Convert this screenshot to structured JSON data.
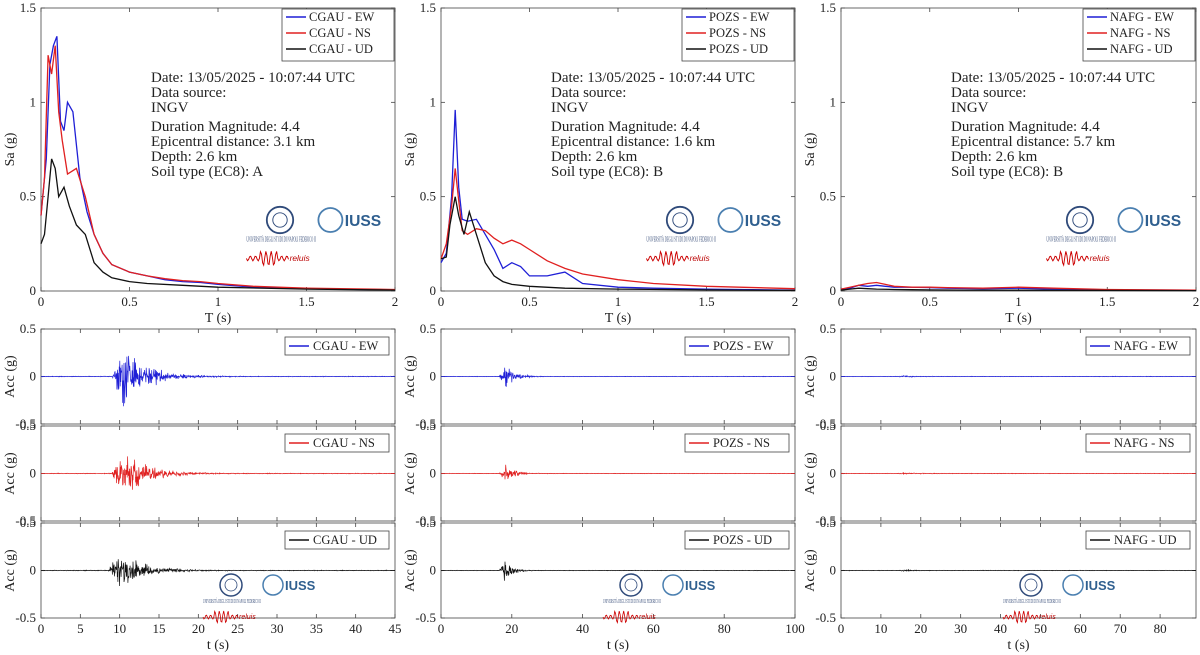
{
  "colors": {
    "ew": "#1f1fd6",
    "ns": "#e02020",
    "ud": "#111111"
  },
  "logos": {
    "university": "UNIVERSITÀ DEGLI STUDI DI NAPOLI FEDERICO II",
    "iuss": "IUSS",
    "reluis": "reluis"
  },
  "stations": [
    {
      "code": "CGAU",
      "spectra": {
        "type": "line",
        "xlabel": "T (s)",
        "ylabel": "Sa (g)",
        "xlim": [
          0,
          2
        ],
        "ylim": [
          0,
          1.5
        ],
        "xticks": [
          0,
          0.5,
          1,
          1.5,
          2
        ],
        "yticks": [
          0,
          0.5,
          1,
          1.5
        ],
        "series": [
          {
            "name": "CGAU - EW",
            "component": "ew",
            "T": [
              0,
              0.03,
              0.05,
              0.07,
              0.09,
              0.11,
              0.13,
              0.15,
              0.18,
              0.22,
              0.26,
              0.3,
              0.35,
              0.4,
              0.5,
              0.6,
              0.7,
              0.8,
              0.9,
              1.0,
              1.2,
              1.5,
              2.0
            ],
            "Sa": [
              0.4,
              0.7,
              1.2,
              1.3,
              1.35,
              0.9,
              0.85,
              1.0,
              0.95,
              0.6,
              0.42,
              0.3,
              0.2,
              0.14,
              0.1,
              0.08,
              0.06,
              0.05,
              0.045,
              0.035,
              0.02,
              0.012,
              0.006
            ]
          },
          {
            "name": "CGAU - NS",
            "component": "ns",
            "T": [
              0,
              0.02,
              0.04,
              0.06,
              0.08,
              0.1,
              0.12,
              0.15,
              0.2,
              0.25,
              0.3,
              0.35,
              0.4,
              0.5,
              0.6,
              0.7,
              0.8,
              0.9,
              1.0,
              1.2,
              1.5,
              2.0
            ],
            "Sa": [
              0.4,
              0.6,
              1.25,
              1.15,
              1.3,
              0.95,
              0.8,
              0.62,
              0.65,
              0.5,
              0.3,
              0.2,
              0.14,
              0.1,
              0.08,
              0.065,
              0.055,
              0.05,
              0.04,
              0.025,
              0.015,
              0.008
            ]
          },
          {
            "name": "CGAU - UD",
            "component": "ud",
            "T": [
              0,
              0.02,
              0.04,
              0.06,
              0.08,
              0.1,
              0.13,
              0.16,
              0.2,
              0.25,
              0.3,
              0.35,
              0.4,
              0.5,
              0.6,
              0.8,
              1.0,
              1.5,
              2.0
            ],
            "Sa": [
              0.25,
              0.3,
              0.5,
              0.7,
              0.65,
              0.5,
              0.55,
              0.45,
              0.35,
              0.3,
              0.15,
              0.1,
              0.07,
              0.05,
              0.04,
              0.03,
              0.02,
              0.01,
              0.005
            ]
          }
        ],
        "info": {
          "date": "Date: 13/05/2025 - 10:07:44 UTC",
          "source_label": "Data source:",
          "source": "INGV",
          "magnitude": "Duration Magnitude: 4.4",
          "distance": "Epicentral distance: 3.1 km",
          "depth": "Depth: 2.6 km",
          "soil": "Soil type (EC8): A"
        }
      },
      "accel": {
        "xlabel": "t (s)",
        "ylabel": "Acc (g)",
        "xlim": [
          0,
          45
        ],
        "ylim": [
          -0.5,
          0.5
        ],
        "xticks": [
          0,
          5,
          10,
          15,
          20,
          25,
          30,
          35,
          40,
          45
        ],
        "yticks": [
          -0.5,
          0,
          0.5
        ],
        "panels": [
          {
            "name": "CGAU - EW",
            "component": "ew",
            "onset": 9.0,
            "peak": 0.38,
            "decay": 3.0,
            "noise": 0.003
          },
          {
            "name": "CGAU - NS",
            "component": "ns",
            "onset": 9.0,
            "peak": 0.32,
            "decay": 3.0,
            "noise": 0.003
          },
          {
            "name": "CGAU - UD",
            "component": "ud",
            "onset": 8.5,
            "peak": 0.22,
            "decay": 3.2,
            "noise": 0.003
          }
        ]
      }
    },
    {
      "code": "POZS",
      "spectra": {
        "type": "line",
        "xlabel": "T (s)",
        "ylabel": "Sa (g)",
        "xlim": [
          0,
          2
        ],
        "ylim": [
          0,
          1.5
        ],
        "xticks": [
          0,
          0.5,
          1,
          1.5,
          2
        ],
        "yticks": [
          0,
          0.5,
          1,
          1.5
        ],
        "series": [
          {
            "name": "POZS - EW",
            "component": "ew",
            "T": [
              0,
              0.03,
              0.06,
              0.08,
              0.1,
              0.12,
              0.15,
              0.2,
              0.25,
              0.3,
              0.35,
              0.4,
              0.45,
              0.5,
              0.6,
              0.7,
              0.8,
              1.0,
              1.2,
              1.5,
              2.0
            ],
            "Sa": [
              0.15,
              0.2,
              0.5,
              0.96,
              0.55,
              0.38,
              0.37,
              0.38,
              0.3,
              0.22,
              0.12,
              0.15,
              0.13,
              0.08,
              0.08,
              0.1,
              0.04,
              0.02,
              0.015,
              0.01,
              0.005
            ]
          },
          {
            "name": "POZS - NS",
            "component": "ns",
            "T": [
              0,
              0.03,
              0.06,
              0.08,
              0.1,
              0.12,
              0.15,
              0.2,
              0.25,
              0.3,
              0.35,
              0.4,
              0.45,
              0.5,
              0.6,
              0.7,
              0.8,
              1.0,
              1.2,
              1.5,
              2.0
            ],
            "Sa": [
              0.17,
              0.25,
              0.45,
              0.65,
              0.48,
              0.32,
              0.3,
              0.33,
              0.32,
              0.28,
              0.25,
              0.27,
              0.25,
              0.22,
              0.16,
              0.12,
              0.09,
              0.06,
              0.04,
              0.025,
              0.012
            ]
          },
          {
            "name": "POZS - UD",
            "component": "ud",
            "T": [
              0,
              0.03,
              0.05,
              0.08,
              0.1,
              0.13,
              0.16,
              0.2,
              0.25,
              0.3,
              0.35,
              0.4,
              0.5,
              0.7,
              1.0,
              1.5,
              2.0
            ],
            "Sa": [
              0.17,
              0.18,
              0.35,
              0.5,
              0.4,
              0.3,
              0.42,
              0.3,
              0.15,
              0.08,
              0.05,
              0.035,
              0.025,
              0.015,
              0.01,
              0.006,
              0.003
            ]
          }
        ],
        "info": {
          "date": "Date: 13/05/2025 - 10:07:44 UTC",
          "source_label": "Data source:",
          "source": "INGV",
          "magnitude": "Duration Magnitude: 4.4",
          "distance": "Epicentral distance: 1.6 km",
          "depth": "Depth: 2.6 km",
          "soil": "Soil type (EC8): B"
        }
      },
      "accel": {
        "xlabel": "t (s)",
        "ylabel": "Acc (g)",
        "xlim": [
          0,
          100
        ],
        "ylim": [
          -0.5,
          0.5
        ],
        "xticks": [
          0,
          20,
          40,
          60,
          80,
          100
        ],
        "yticks": [
          -0.5,
          0,
          0.5
        ],
        "panels": [
          {
            "name": "POZS - EW",
            "component": "ew",
            "onset": 16.5,
            "peak": 0.18,
            "decay": 2.5,
            "noise": 0.002
          },
          {
            "name": "POZS - NS",
            "component": "ns",
            "onset": 16.5,
            "peak": 0.14,
            "decay": 2.5,
            "noise": 0.002
          },
          {
            "name": "POZS - UD",
            "component": "ud",
            "onset": 16.5,
            "peak": 0.15,
            "decay": 2.2,
            "noise": 0.002
          }
        ]
      }
    },
    {
      "code": "NAFG",
      "spectra": {
        "type": "line",
        "xlabel": "T (s)",
        "ylabel": "Sa (g)",
        "xlim": [
          0,
          2
        ],
        "ylim": [
          0,
          1.5
        ],
        "xticks": [
          0,
          0.5,
          1,
          1.5,
          2
        ],
        "yticks": [
          0,
          0.5,
          1,
          1.5
        ],
        "series": [
          {
            "name": "NAFG - EW",
            "component": "ew",
            "T": [
              0,
              0.05,
              0.1,
              0.15,
              0.2,
              0.25,
              0.3,
              0.4,
              0.5,
              0.6,
              0.8,
              1.0,
              1.2,
              1.5,
              2.0
            ],
            "Sa": [
              0.01,
              0.015,
              0.03,
              0.025,
              0.03,
              0.025,
              0.02,
              0.02,
              0.018,
              0.015,
              0.012,
              0.015,
              0.01,
              0.006,
              0.004
            ]
          },
          {
            "name": "NAFG - NS",
            "component": "ns",
            "T": [
              0,
              0.05,
              0.1,
              0.15,
              0.2,
              0.25,
              0.3,
              0.4,
              0.5,
              0.6,
              0.8,
              1.0,
              1.2,
              1.5,
              2.0
            ],
            "Sa": [
              0.01,
              0.02,
              0.03,
              0.04,
              0.045,
              0.035,
              0.025,
              0.02,
              0.02,
              0.018,
              0.015,
              0.02,
              0.015,
              0.008,
              0.005
            ]
          },
          {
            "name": "NAFG - UD",
            "component": "ud",
            "T": [
              0,
              0.05,
              0.1,
              0.15,
              0.2,
              0.3,
              0.4,
              0.5,
              0.7,
              1.0,
              1.5,
              2.0
            ],
            "Sa": [
              0.005,
              0.01,
              0.015,
              0.012,
              0.01,
              0.008,
              0.007,
              0.006,
              0.005,
              0.004,
              0.003,
              0.002
            ]
          }
        ],
        "info": {
          "date": "Date: 13/05/2025 - 10:07:44 UTC",
          "source_label": "Data source:",
          "source": "INGV",
          "magnitude": "Duration Magnitude: 4.4",
          "distance": "Epicentral distance: 5.7 km",
          "depth": "Depth: 2.6 km",
          "soil": "Soil type (EC8): B"
        }
      },
      "accel": {
        "xlabel": "t (s)",
        "ylabel": "Acc (g)",
        "xlim": [
          0,
          89
        ],
        "ylim": [
          -0.5,
          0.5
        ],
        "xticks": [
          0,
          10,
          20,
          30,
          40,
          50,
          60,
          70,
          80
        ],
        "yticks": [
          -0.5,
          0,
          0.5
        ],
        "panels": [
          {
            "name": "NAFG - EW",
            "component": "ew",
            "onset": 14.0,
            "peak": 0.012,
            "decay": 4.0,
            "noise": 0.002
          },
          {
            "name": "NAFG - NS",
            "component": "ns",
            "onset": 14.0,
            "peak": 0.015,
            "decay": 4.0,
            "noise": 0.002
          },
          {
            "name": "NAFG - UD",
            "component": "ud",
            "onset": 14.0,
            "peak": 0.008,
            "decay": 4.0,
            "noise": 0.002
          }
        ]
      }
    }
  ]
}
